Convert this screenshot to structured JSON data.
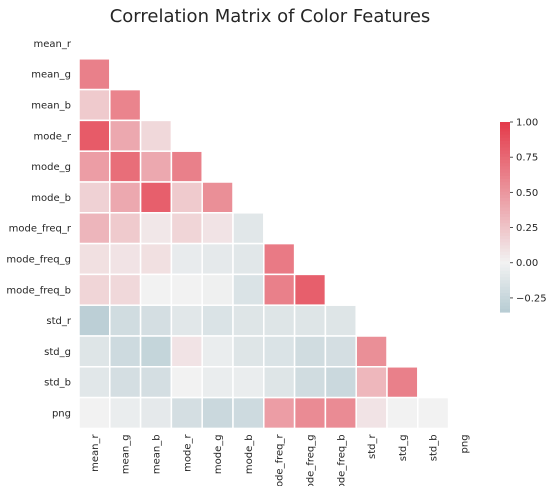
{
  "chart_data": {
    "type": "heatmap",
    "title": "Correlation Matrix of Color Features",
    "mask": "upper-triangle",
    "labels": [
      "mean_r",
      "mean_g",
      "mean_b",
      "mode_r",
      "mode_g",
      "mode_b",
      "mode_freq_r",
      "mode_freq_g",
      "mode_freq_b",
      "std_r",
      "std_g",
      "std_b",
      "png"
    ],
    "values": [
      [
        1.0,
        0.62,
        0.22,
        0.82,
        0.46,
        0.18,
        0.33,
        0.1,
        0.16,
        -0.32,
        -0.12,
        -0.1,
        0.0
      ],
      [
        0.62,
        1.0,
        0.6,
        0.4,
        0.72,
        0.4,
        0.22,
        0.08,
        0.14,
        -0.2,
        -0.22,
        -0.18,
        -0.05
      ],
      [
        0.22,
        0.6,
        1.0,
        0.14,
        0.4,
        0.8,
        0.06,
        0.1,
        0.0,
        -0.18,
        -0.27,
        -0.18,
        -0.08
      ],
      [
        0.82,
        0.4,
        0.14,
        1.0,
        0.62,
        0.22,
        0.16,
        -0.06,
        0.0,
        -0.1,
        0.08,
        0.0,
        -0.18
      ],
      [
        0.46,
        0.72,
        0.4,
        0.62,
        1.0,
        0.54,
        0.08,
        -0.08,
        -0.02,
        -0.14,
        -0.05,
        -0.05,
        -0.24
      ],
      [
        0.18,
        0.4,
        0.8,
        0.22,
        0.54,
        1.0,
        -0.1,
        -0.1,
        -0.14,
        -0.12,
        -0.12,
        -0.05,
        -0.22
      ],
      [
        0.33,
        0.22,
        0.06,
        0.16,
        0.08,
        -0.1,
        1.0,
        0.65,
        0.62,
        -0.12,
        -0.14,
        -0.12,
        0.46
      ],
      [
        0.1,
        0.08,
        0.1,
        -0.06,
        -0.08,
        -0.1,
        0.65,
        1.0,
        0.8,
        -0.12,
        -0.2,
        -0.2,
        0.56
      ],
      [
        0.16,
        0.14,
        0.0,
        0.0,
        -0.02,
        -0.14,
        0.62,
        0.8,
        1.0,
        -0.12,
        -0.18,
        -0.24,
        0.56
      ],
      [
        -0.32,
        -0.2,
        -0.18,
        -0.1,
        -0.14,
        -0.12,
        -0.12,
        -0.12,
        -0.12,
        1.0,
        0.54,
        0.32,
        0.08
      ],
      [
        -0.12,
        -0.22,
        -0.27,
        0.08,
        -0.05,
        -0.12,
        -0.14,
        -0.2,
        -0.18,
        0.54,
        1.0,
        0.62,
        0.0
      ],
      [
        -0.1,
        -0.18,
        -0.18,
        0.0,
        -0.05,
        -0.05,
        -0.12,
        -0.2,
        -0.24,
        0.32,
        0.62,
        1.0,
        0.0
      ],
      [
        0.0,
        -0.05,
        -0.08,
        -0.18,
        -0.24,
        -0.22,
        0.46,
        0.56,
        0.56,
        0.08,
        0.0,
        0.0,
        1.0
      ]
    ],
    "colorbar": {
      "vmin": -0.35,
      "vmax": 1.0,
      "ticks": [
        1.0,
        0.75,
        0.5,
        0.25,
        0.0,
        -0.25
      ],
      "tick_labels": [
        "1.00",
        "0.75",
        "0.50",
        "0.25",
        "0.00",
        "−0.25"
      ]
    },
    "colors": {
      "negative": "#b7ccd3",
      "neutral": "#f2f2f2",
      "positive": "#e43a4a"
    },
    "grid": false
  }
}
